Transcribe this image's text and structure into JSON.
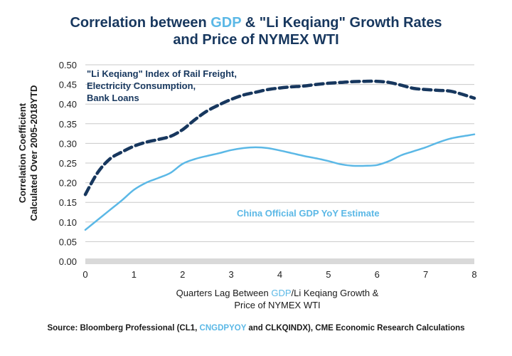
{
  "title": {
    "line1_pre": "Correlation between ",
    "line1_hl": "GDP",
    "line1_post": " & \"Li Keqiang\" Growth Rates",
    "line2": "and Price of NYMEX WTI"
  },
  "ylabel_line1": "Correlation Coefficient",
  "ylabel_line2": "Calculated Over 2005-2018YTD",
  "xlabel": {
    "pre": "Quarters Lag Between ",
    "hl": "GDP",
    "post": "/Li Keqiang Growth &",
    "line2": "Price of NYMEX WTI"
  },
  "annotations": {
    "likeqiang_line1": "\"Li Keqiang\" Index of Rail Freight,",
    "likeqiang_line2": "Electricity Consumption,",
    "likeqiang_line3": "Bank Loans",
    "gdp": "China Official GDP YoY  Estimate"
  },
  "source": {
    "pre": "Source: Bloomberg Professional (CL1, ",
    "hl": "CNGDPYOY",
    "post": " and CLKQINDX), CME Economic Research Calculations"
  },
  "colors": {
    "dark_series": "#17375e",
    "light_series": "#5bb8e6",
    "gridline": "#c8c8c8",
    "zero_band": "#d9d9d9"
  },
  "chart_data": {
    "type": "line",
    "xlim": [
      0,
      8
    ],
    "ylim": [
      0,
      0.5
    ],
    "x_ticks": [
      "0",
      "1",
      "2",
      "3",
      "4",
      "5",
      "6",
      "7",
      "8"
    ],
    "y_ticks": [
      "0.00",
      "0.05",
      "0.10",
      "0.15",
      "0.20",
      "0.25",
      "0.30",
      "0.35",
      "0.40",
      "0.45",
      "0.50"
    ],
    "grid": true,
    "series": [
      {
        "name": "\"Li Keqiang\" Index of Rail Freight, Electricity Consumption, Bank Loans",
        "style": "dashed",
        "color": "#17375e",
        "x": [
          0,
          0.25,
          0.5,
          0.75,
          1,
          1.25,
          1.5,
          1.75,
          2,
          2.25,
          2.5,
          2.75,
          3,
          3.25,
          3.5,
          3.75,
          4,
          4.25,
          4.5,
          4.75,
          5,
          5.25,
          5.5,
          5.75,
          6,
          6.25,
          6.5,
          6.75,
          7,
          7.25,
          7.5,
          7.75,
          8
        ],
        "y": [
          0.17,
          0.225,
          0.26,
          0.278,
          0.293,
          0.303,
          0.31,
          0.318,
          0.335,
          0.36,
          0.382,
          0.398,
          0.412,
          0.423,
          0.43,
          0.437,
          0.441,
          0.444,
          0.446,
          0.45,
          0.453,
          0.455,
          0.457,
          0.458,
          0.458,
          0.455,
          0.448,
          0.44,
          0.437,
          0.435,
          0.433,
          0.425,
          0.415
        ]
      },
      {
        "name": "China Official GDP YoY  Estimate",
        "style": "solid",
        "color": "#5bb8e6",
        "x": [
          0,
          0.25,
          0.5,
          0.75,
          1,
          1.25,
          1.5,
          1.75,
          2,
          2.25,
          2.5,
          2.75,
          3,
          3.25,
          3.5,
          3.75,
          4,
          4.25,
          4.5,
          4.75,
          5,
          5.25,
          5.5,
          5.75,
          6,
          6.25,
          6.5,
          6.75,
          7,
          7.25,
          7.5,
          7.75,
          8
        ],
        "y": [
          0.08,
          0.105,
          0.13,
          0.155,
          0.182,
          0.2,
          0.212,
          0.225,
          0.248,
          0.26,
          0.268,
          0.275,
          0.283,
          0.288,
          0.29,
          0.288,
          0.282,
          0.275,
          0.268,
          0.262,
          0.255,
          0.247,
          0.243,
          0.243,
          0.245,
          0.255,
          0.27,
          0.28,
          0.29,
          0.302,
          0.312,
          0.318,
          0.323
        ]
      }
    ]
  }
}
